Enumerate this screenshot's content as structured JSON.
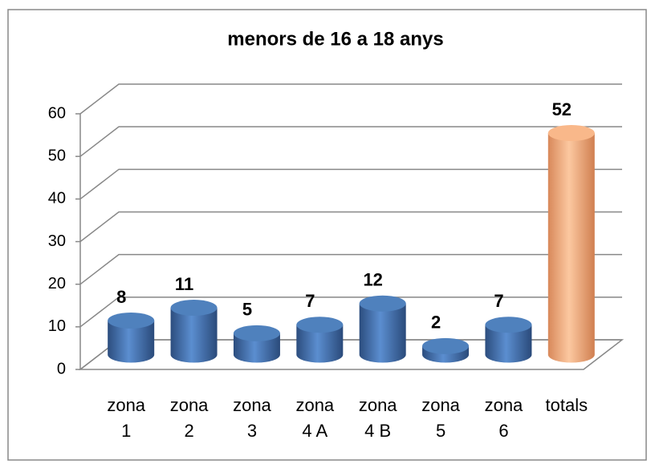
{
  "chart_data": {
    "type": "bar",
    "title": "menors de 16 a 18 anys",
    "categories": [
      "zona 1",
      "zona 2",
      "zona 3",
      "zona 4 A",
      "zona 4 B",
      "zona 5",
      "zona 6",
      "totals"
    ],
    "values": [
      8,
      11,
      5,
      7,
      12,
      2,
      7,
      52
    ],
    "colors": [
      "#4f81bd",
      "#4f81bd",
      "#4f81bd",
      "#4f81bd",
      "#4f81bd",
      "#4f81bd",
      "#4f81bd",
      "#f9b88a"
    ],
    "ylim": [
      0,
      60
    ],
    "yticks": [
      0,
      10,
      20,
      30,
      40,
      50,
      60
    ],
    "grid": true
  }
}
